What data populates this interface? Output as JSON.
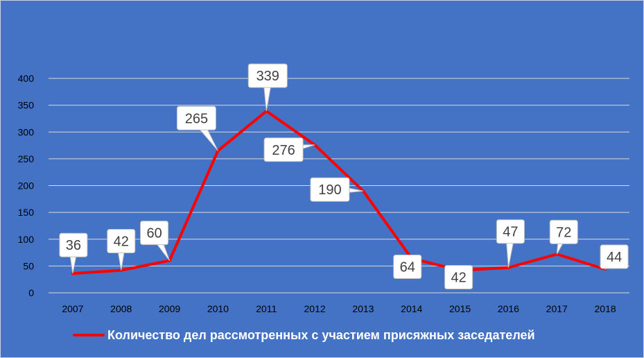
{
  "chart_data": {
    "type": "line",
    "title": "",
    "xlabel": "",
    "ylabel": "",
    "ylim": [
      0,
      400
    ],
    "yticks": [
      "0",
      "50",
      "100",
      "150",
      "200",
      "250",
      "300",
      "350",
      "400"
    ],
    "categories": [
      "2007",
      "2008",
      "2009",
      "2010",
      "2011",
      "2012",
      "2013",
      "2014",
      "2015",
      "2016",
      "2017",
      "2018"
    ],
    "series": [
      {
        "name": "Количество дел рассмотренных с участием присяжных заседателей",
        "values": [
          36,
          42,
          60,
          265,
          339,
          276,
          190,
          64,
          42,
          47,
          72,
          44
        ],
        "labels": [
          "36",
          "42",
          "60",
          "265",
          "339",
          "276",
          "190",
          "64",
          "42",
          "47",
          "72",
          "44"
        ],
        "color": "#ff0000"
      }
    ],
    "grid": true,
    "legend": "bottom",
    "background": "#4472c4",
    "label_box_color": "#ffffff",
    "tick_color": "#000000"
  }
}
